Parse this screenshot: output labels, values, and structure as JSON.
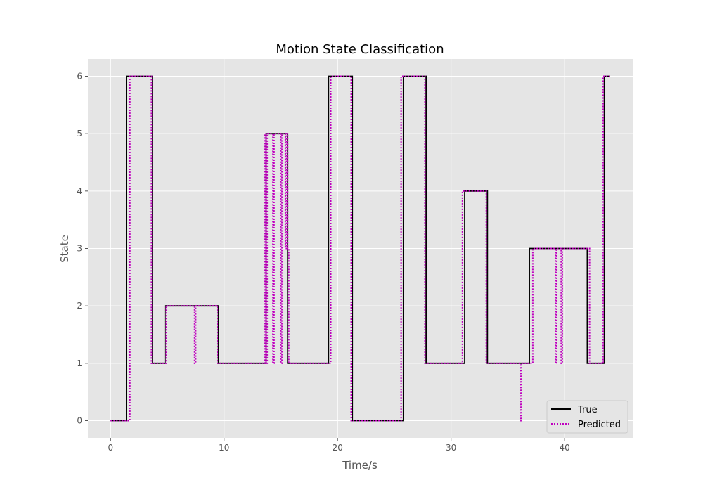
{
  "chart_data": {
    "type": "line",
    "title": "Motion State Classification",
    "xlabel": "Time/s",
    "ylabel": "State",
    "xlim": [
      -2,
      46
    ],
    "ylim": [
      -0.3,
      6.3
    ],
    "xticks": [
      0,
      10,
      20,
      30,
      40
    ],
    "yticks": [
      0,
      1,
      2,
      3,
      4,
      5,
      6
    ],
    "grid": true,
    "legend": "lower-right",
    "colors": {
      "plot_bg": "#e5e5e5",
      "grid": "#ffffff",
      "true": "#000000",
      "predicted": "#bf00bf"
    },
    "series": [
      {
        "name": "True",
        "style": "solid",
        "x": [
          0,
          1.4,
          1.4,
          3.7,
          3.7,
          4.8,
          4.8,
          9.5,
          9.5,
          13.7,
          13.7,
          15.6,
          15.6,
          19.2,
          19.2,
          21.3,
          21.3,
          25.8,
          25.8,
          27.8,
          27.8,
          31.2,
          31.2,
          33.2,
          33.2,
          36.9,
          36.9,
          42.0,
          42.0,
          43.5,
          43.5,
          44.0
        ],
        "y": [
          0,
          0,
          6,
          6,
          1,
          1,
          2,
          2,
          1,
          1,
          5,
          5,
          1,
          1,
          6,
          6,
          0,
          0,
          6,
          6,
          1,
          1,
          4,
          4,
          1,
          1,
          3,
          3,
          1,
          1,
          6,
          6
        ]
      },
      {
        "name": "Predicted",
        "style": "dotted",
        "x": [
          0,
          1.7,
          1.7,
          3.6,
          3.6,
          4.9,
          4.9,
          7.4,
          7.4,
          7.5,
          7.5,
          9.4,
          9.4,
          13.6,
          13.6,
          13.7,
          13.7,
          13.8,
          13.8,
          14.3,
          14.3,
          14.4,
          14.4,
          15.0,
          15.0,
          15.1,
          15.1,
          15.4,
          15.4,
          15.5,
          15.5,
          15.6,
          15.6,
          15.7,
          15.7,
          19.4,
          19.4,
          21.2,
          21.2,
          25.6,
          25.6,
          27.7,
          27.7,
          31.0,
          31.0,
          33.1,
          33.1,
          36.1,
          36.1,
          36.2,
          36.2,
          37.2,
          37.2,
          37.5,
          37.5,
          39.2,
          39.2,
          39.3,
          39.3,
          39.7,
          39.7,
          39.8,
          39.8,
          42.2,
          42.2,
          43.4,
          43.4,
          44.0
        ],
        "y": [
          0,
          0,
          6,
          6,
          1,
          1,
          2,
          2,
          1,
          1,
          2,
          2,
          1,
          1,
          5,
          5,
          1,
          1,
          5,
          5,
          1,
          1,
          5,
          5,
          1,
          1,
          5,
          5,
          3,
          3,
          5,
          5,
          3,
          3,
          1,
          1,
          6,
          6,
          0,
          0,
          6,
          6,
          1,
          1,
          4,
          4,
          1,
          1,
          0,
          0,
          1,
          1,
          3,
          3,
          3,
          3,
          1,
          1,
          3,
          3,
          1,
          1,
          3,
          3,
          1,
          1,
          6,
          6
        ]
      }
    ]
  }
}
